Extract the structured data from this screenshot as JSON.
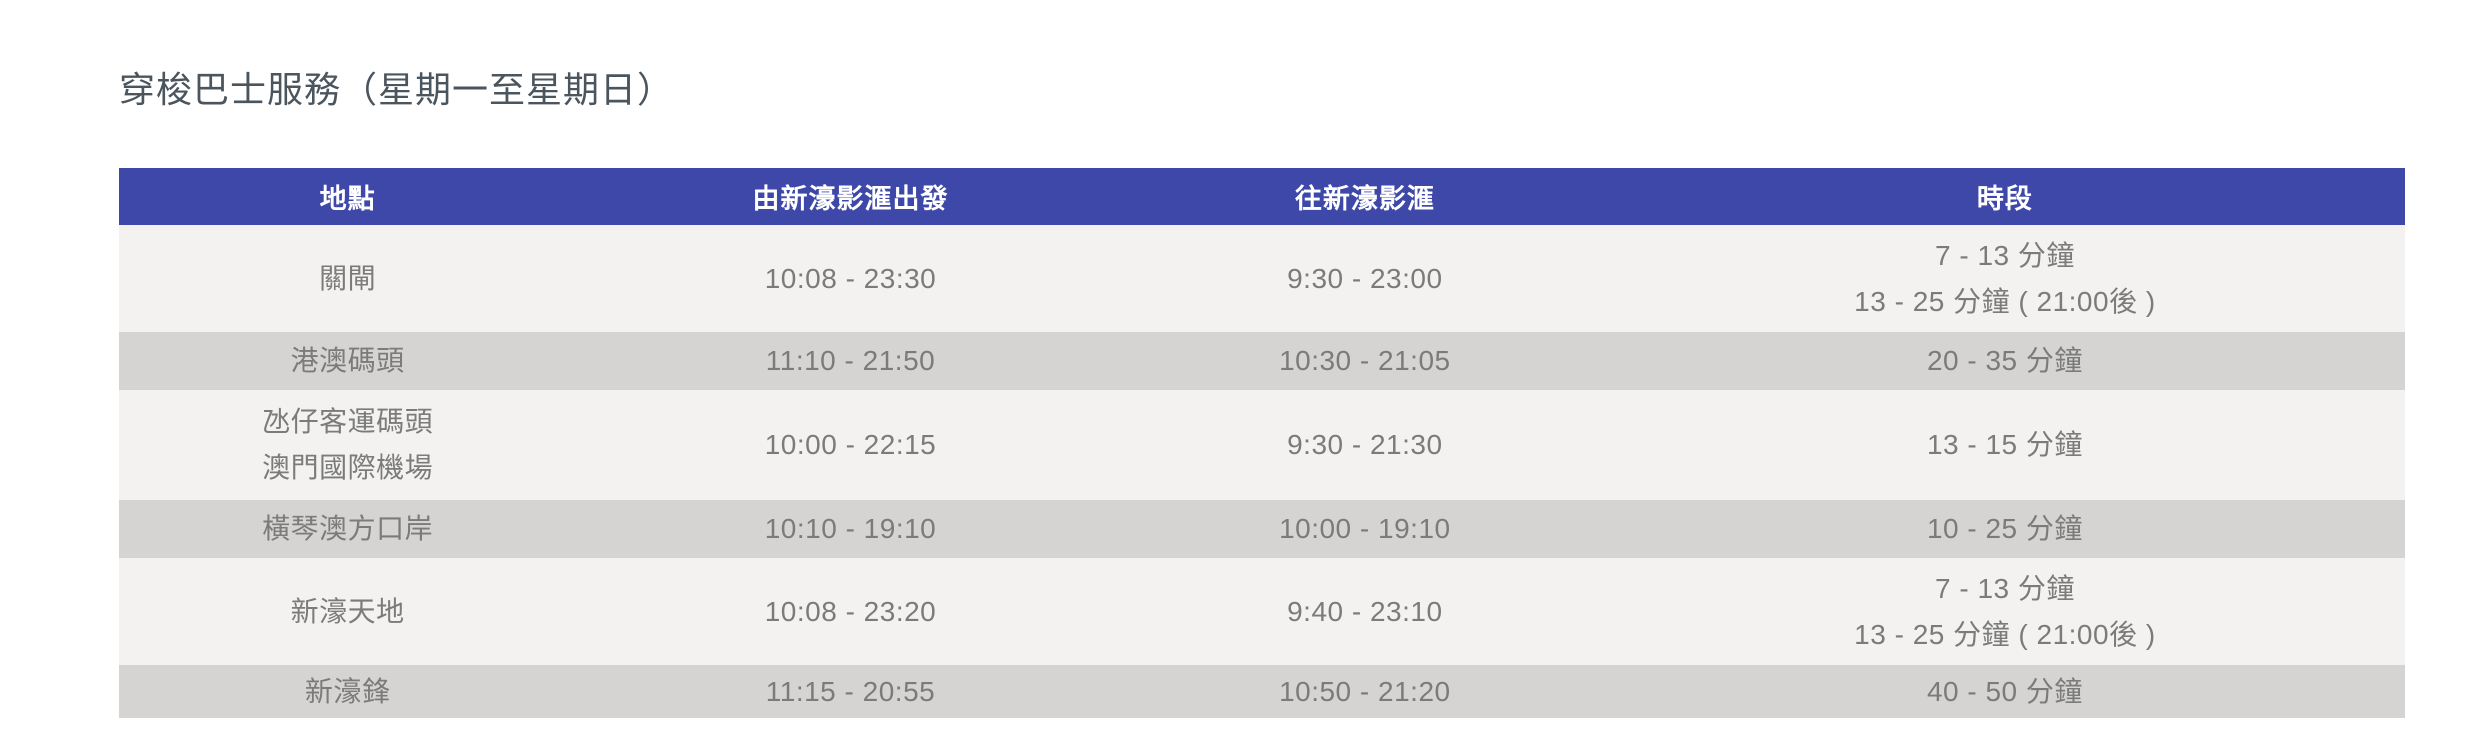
{
  "page": {
    "title": "穿梭巴士服務（星期一至星期日）"
  },
  "table": {
    "columns": [
      {
        "label": "地點"
      },
      {
        "label": "由新濠影滙出發"
      },
      {
        "label": "往新濠影滙"
      },
      {
        "label": "時段"
      }
    ],
    "rows": [
      {
        "location": [
          "關閘"
        ],
        "depart": "10:08 - 23:30",
        "return": "9:30 - 23:00",
        "frequency": [
          "7 - 13 分鐘",
          "13 - 25 分鐘 ( 21:00後 )"
        ]
      },
      {
        "location": [
          "港澳碼頭"
        ],
        "depart": "11:10 - 21:50",
        "return": "10:30 - 21:05",
        "frequency": [
          "20 - 35 分鐘"
        ]
      },
      {
        "location": [
          "氹仔客運碼頭",
          "澳門國際機場"
        ],
        "depart": "10:00 - 22:15",
        "return": "9:30 - 21:30",
        "frequency": [
          "13 - 15 分鐘"
        ]
      },
      {
        "location": [
          "橫琴澳方口岸"
        ],
        "depart": "10:10 - 19:10",
        "return": "10:00 - 19:10",
        "frequency": [
          "10 - 25 分鐘"
        ]
      },
      {
        "location": [
          "新濠天地"
        ],
        "depart": "10:08 - 23:20",
        "return": "9:40 - 23:10",
        "frequency": [
          "7 - 13 分鐘",
          "13 - 25 分鐘 ( 21:00後 )"
        ]
      },
      {
        "location": [
          "新濠鋒"
        ],
        "depart": "11:15 - 20:55",
        "return": "10:50 - 21:20",
        "frequency": [
          "40 - 50 分鐘"
        ]
      }
    ]
  },
  "colors": {
    "header_bg": "#3E48A8",
    "header_text": "#FFFFFF",
    "row_light": "#F3F2F0",
    "row_dark": "#D5D4D2",
    "cell_text": "#7B7B7B",
    "title_text": "#4B555E"
  }
}
